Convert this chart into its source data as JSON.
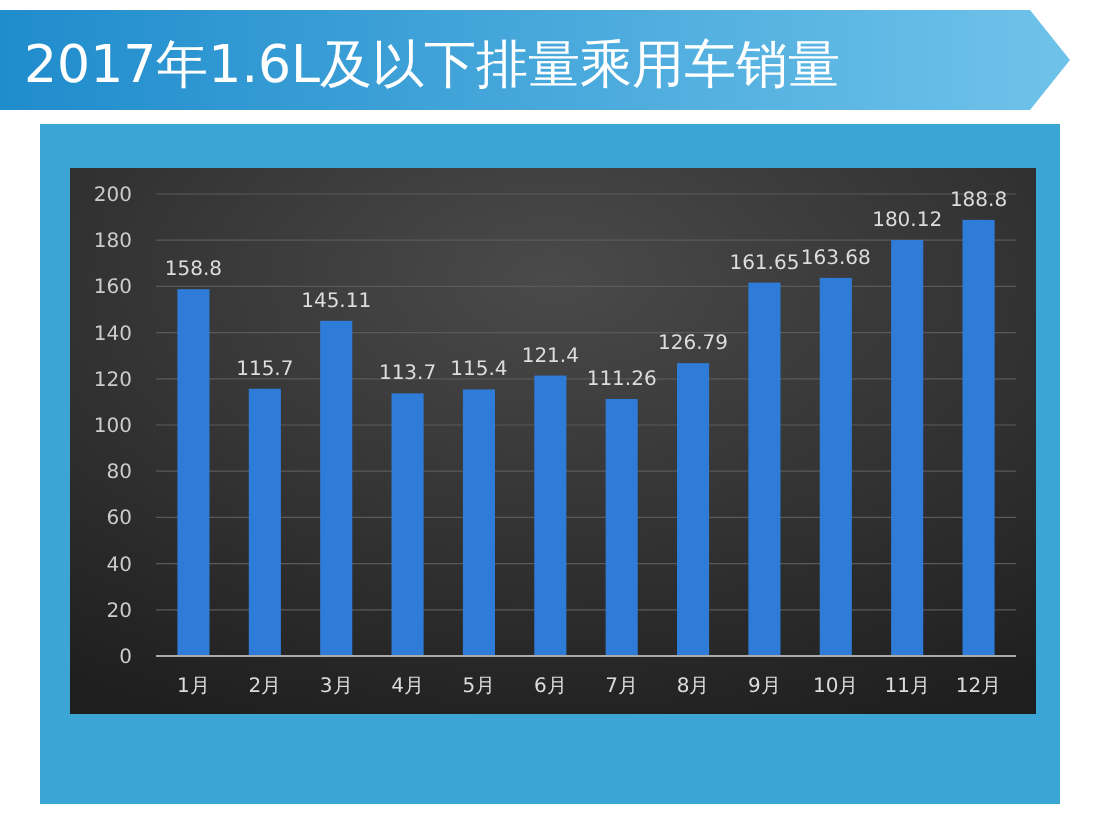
{
  "chart_data": {
    "type": "bar",
    "title": "2017年1.6L及以下排量乘用车销量",
    "categories": [
      "1月",
      "2月",
      "3月",
      "4月",
      "5月",
      "6月",
      "7月",
      "8月",
      "9月",
      "10月",
      "11月",
      "12月"
    ],
    "values": [
      158.8,
      115.7,
      145.11,
      113.7,
      115.4,
      121.4,
      111.26,
      126.79,
      161.65,
      163.68,
      180.12,
      188.8
    ],
    "color": "#2f7bd8",
    "ylim": [
      0,
      200
    ],
    "yticks": [
      0,
      20,
      40,
      60,
      80,
      100,
      120,
      140,
      160,
      180,
      200
    ],
    "grid": "y",
    "data_labels": true
  }
}
